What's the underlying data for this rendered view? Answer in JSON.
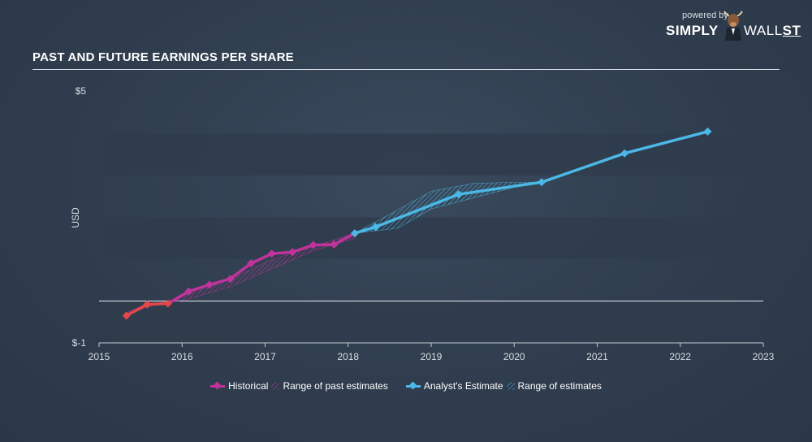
{
  "title": "PAST AND FUTURE EARNINGS PER SHARE",
  "brand": {
    "powered": "powered by",
    "simply": "SIMPLY",
    "wall": "WALL",
    "st": "ST"
  },
  "legend": {
    "historical": "Historical",
    "past_range": "Range of past estimates",
    "estimate": "Analyst's Estimate",
    "future_range": "Range of estimates"
  },
  "colors": {
    "historical": "#c0339c",
    "historical_negative": "#e2474a",
    "estimate": "#4bb8e6",
    "band": "#2f3c4c",
    "zero_line": "#e8ecf0"
  },
  "chart_data": {
    "type": "line",
    "title": "PAST AND FUTURE EARNINGS PER SHARE",
    "ylabel": "USD",
    "ylim": [
      -1,
      5
    ],
    "xlim": [
      2015,
      2023
    ],
    "y_tick_labels": [
      "$5",
      "$-1"
    ],
    "x_ticks": [
      2015,
      2016,
      2017,
      2018,
      2019,
      2020,
      2021,
      2022,
      2023
    ],
    "series": [
      {
        "name": "Historical",
        "points": [
          [
            2015.33,
            -0.35
          ],
          [
            2015.58,
            -0.08
          ],
          [
            2015.83,
            -0.06
          ],
          [
            2016.08,
            0.23
          ],
          [
            2016.33,
            0.39
          ],
          [
            2016.58,
            0.53
          ],
          [
            2016.83,
            0.9
          ],
          [
            2017.08,
            1.13
          ],
          [
            2017.33,
            1.17
          ],
          [
            2017.58,
            1.34
          ],
          [
            2017.83,
            1.35
          ],
          [
            2018.08,
            1.62
          ]
        ]
      },
      {
        "name": "Analyst's Estimate",
        "points": [
          [
            2018.08,
            1.62
          ],
          [
            2018.33,
            1.77
          ],
          [
            2019.33,
            2.55
          ],
          [
            2020.33,
            2.84
          ],
          [
            2021.33,
            3.53
          ],
          [
            2022.33,
            4.05
          ]
        ]
      }
    ],
    "past_estimate_range": [
      [
        2015.33,
        -0.35,
        -0.28
      ],
      [
        2015.58,
        -0.14,
        -0.06
      ],
      [
        2015.83,
        -0.04,
        -0.02
      ],
      [
        2016.08,
        0.05,
        0.15
      ],
      [
        2016.58,
        0.34,
        0.52
      ],
      [
        2017.08,
        0.77,
        0.99
      ],
      [
        2017.58,
        1.2,
        1.3
      ],
      [
        2018.08,
        1.5,
        1.62
      ]
    ],
    "future_estimate_range": [
      [
        2018.08,
        1.62,
        1.62
      ],
      [
        2018.6,
        1.74,
        2.18
      ],
      [
        2019.0,
        2.2,
        2.62
      ],
      [
        2019.5,
        2.46,
        2.81
      ],
      [
        2020.0,
        2.72,
        2.84
      ],
      [
        2020.33,
        2.84,
        2.84
      ]
    ],
    "zero_line": 0
  }
}
